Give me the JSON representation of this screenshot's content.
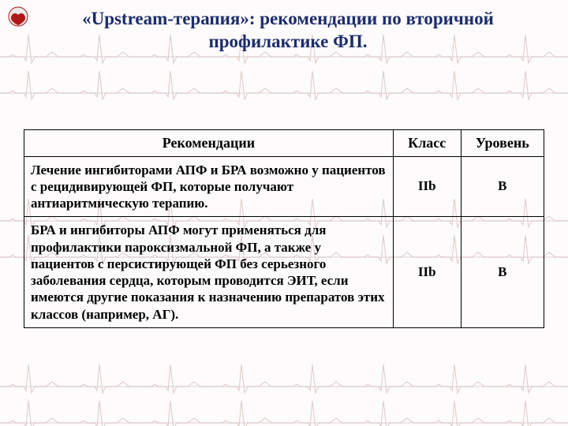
{
  "colors": {
    "title": "#1b2d6b",
    "border": "#000000",
    "text": "#000000",
    "ecg_line": "#c9a9a9",
    "ecg_baseline": "#e2d0d0",
    "bg": "#fdfbfb",
    "logo_a": "#b01818",
    "logo_b": "#eaeaea"
  },
  "title": "«Upstream-терапия»: рекомендации по вторичной профилактике ФП.",
  "title_fontsize": 23,
  "table": {
    "body_fontsize": 17,
    "header_fontsize": 18,
    "col_widths": [
      "71%",
      "13%",
      "16%"
    ],
    "columns": [
      "Рекомендации",
      "Класс",
      "Уровень"
    ],
    "rows": [
      {
        "rec": "Лечение ингибиторами АПФ и БРА возможно у пациентов с рецидивирующей ФП, которые получают антиаритмическую терапию.",
        "class": "IIb",
        "level": "B"
      },
      {
        "rec": "БРА и ингибиторы АПФ могут применяться для профилактики пароксизмальной ФП, а также у пациентов с персистирующей ФП без серьезного заболевания сердца, которым проводится ЭИТ, если имеются другие показания к назначению препаратов этих классов (например, АГ).",
        "class": "IIb",
        "level": "B"
      }
    ]
  },
  "ecg": {
    "bands": [
      72,
      280,
      490
    ],
    "band_height": 46
  }
}
